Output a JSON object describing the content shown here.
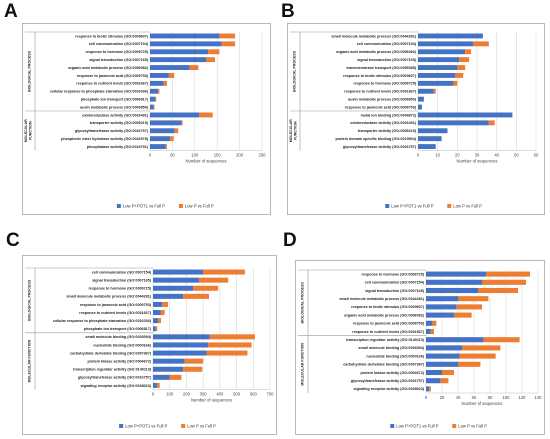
{
  "colors": {
    "combined": "#4472C4",
    "lowp": "#ED7D31",
    "grid": "#d9d9d9",
    "text": "#222222"
  },
  "chart_data": [
    {
      "panel": "A",
      "type": "bar",
      "orientation": "horizontal",
      "stacked": true,
      "xlabel": "Number of sequences",
      "xlim": [
        0,
        250
      ],
      "xticks": [
        0,
        50,
        100,
        150,
        200,
        250
      ],
      "series_names": [
        "Low P+POT1 vs Full P",
        "Low P vs Full P"
      ],
      "legend": "bottom",
      "grid": true,
      "groups": [
        {
          "label": "BIOLOGICAL PROCESS",
          "categories": [
            "response to biotic stimulus (GO:0009607)",
            "cell communication (GO:0007154)",
            "response to hormone (GO:0009725)",
            "signal transduction (GO:0007165)",
            "organic acid metabolic process (GO:0006082)",
            "response to jasmonic acid (GO:0009753)",
            "response to nutrient levels (GO:0031667)",
            "cellular response to phosphate starvation (GO:0016036)",
            "phosphate ion transport (GO:0006817)",
            "auxin metabolic process (GO:0009850)"
          ],
          "series": [
            {
              "name": "Low P+POT1 vs Full P",
              "values": [
                155,
                160,
                130,
                125,
                88,
                42,
                30,
                18,
                12,
                8
              ]
            },
            {
              "name": "Low P vs Full P",
              "values": [
                35,
                30,
                25,
                20,
                20,
                12,
                8,
                3,
                2,
                2
              ]
            }
          ]
        },
        {
          "label": "MOLECULAR FUNCTION",
          "categories": [
            "oxidoreductase activity (GO:0016491)",
            "transporter activity (GO:0005215)",
            "glycosyltransferase activity (GO:0016757)",
            "phosphoric ester hydrolase activity (GO:0042578)",
            "phosphatase activity (GO:0016791)"
          ],
          "series": [
            {
              "name": "Low P+POT1 vs Full P",
              "values": [
                110,
                70,
                55,
                45,
                35
              ]
            },
            {
              "name": "Low P vs Full P",
              "values": [
                30,
                3,
                8,
                8,
                3
              ]
            }
          ]
        }
      ]
    },
    {
      "panel": "B",
      "type": "bar",
      "orientation": "horizontal",
      "stacked": true,
      "xlabel": "Number of sequences",
      "xlim": [
        0,
        60
      ],
      "xticks": [
        0,
        10,
        20,
        30,
        40,
        50,
        60
      ],
      "series_names": [
        "Low P+POT1 vs Full P",
        "Low P vs Full P"
      ],
      "legend": "bottom",
      "grid": true,
      "groups": [
        {
          "label": "BIOLOGICAL PROCESS",
          "categories": [
            "small molecule metabolic process (GO:0044281)",
            "cell communication (GO:0007154)",
            "organic acid metabolic process (GO:0006082)",
            "signal transduction (GO:0007165)",
            "transmembrane transport (GO:0055085)",
            "response to biotic stimulus (GO:0009607)",
            "response to hormone (GO:0009725)",
            "response to nutrient levels (GO:0031667)",
            "auxin metabolic process (GO:0009850)",
            "response to jasmonic acid (GO:0009753)"
          ],
          "series": [
            {
              "name": "Low P+POT1 vs Full P",
              "values": [
                33,
                28,
                24,
                21,
                20,
                19,
                18,
                8,
                3,
                2
              ]
            },
            {
              "name": "Low P vs Full P",
              "values": [
                0,
                8,
                3,
                5,
                4,
                4,
                2,
                1,
                0,
                0
              ]
            }
          ]
        },
        {
          "label": "MOLECULAR FUNCTION",
          "categories": [
            "metal ion binding (GO:0046872)",
            "oxidoreductase activity (GO:0016491)",
            "transporter activity (GO:0005215)",
            "protein domain specific binding (GO:0019904)",
            "glycosyltransferase activity (GO:0016757)"
          ],
          "series": [
            {
              "name": "Low P+POT1 vs Full P",
              "values": [
                48,
                36,
                15,
                12,
                9
              ]
            },
            {
              "name": "Low P vs Full P",
              "values": [
                0,
                3,
                0,
                0,
                0
              ]
            }
          ]
        }
      ]
    },
    {
      "panel": "C",
      "type": "bar",
      "orientation": "horizontal",
      "stacked": true,
      "xlabel": "Number of sequences",
      "xlim": [
        0,
        700
      ],
      "xticks": [
        0,
        100,
        200,
        300,
        400,
        500,
        600,
        700
      ],
      "series_names": [
        "Low P+POT1 vs Full P",
        "Low P vs Full P"
      ],
      "legend": "bottom",
      "grid": true,
      "groups": [
        {
          "label": "BIOLOGICAL PROCESS",
          "categories": [
            "cell communication (GO:0007154)",
            "signal transduction (GO:0007165)",
            "response to hormone (GO:0009725)",
            "small molecule metabolic process (GO:0044281)",
            "response to jasmonic acid (GO:0009753)",
            "response to nutrient levels (GO:0031667)",
            "cellular response to phosphate starvation (GO:0016036)",
            "phosphate ion transport (GO:0006817)"
          ],
          "series": [
            {
              "name": "Low P+POT1 vs Full P",
              "values": [
                300,
                275,
                240,
                180,
                55,
                45,
                30,
                15
              ]
            },
            {
              "name": "Low P vs Full P",
              "values": [
                250,
                175,
                150,
                155,
                35,
                25,
                18,
                10
              ]
            }
          ]
        },
        {
          "label": "MOLECULAR FUNCTION",
          "categories": [
            "small molecule binding (GO:0036094)",
            "nucleotide binding (GO:0000166)",
            "carbohydrate derivative binding (GO:0097367)",
            "protein kinase activity (GO:0004672)",
            "transcription regulator activity (GO:0140110)",
            "glycosyltransferase activity (GO:0016757)",
            "signaling receptor activity (GO:0038023)"
          ],
          "series": [
            {
              "name": "Low P+POT1 vs Full P",
              "values": [
                340,
                330,
                320,
                190,
                180,
                100,
                25
              ]
            },
            {
              "name": "Low P vs Full P",
              "values": [
                270,
                260,
                245,
                110,
                115,
                70,
                15
              ]
            }
          ]
        }
      ]
    },
    {
      "panel": "D",
      "type": "bar",
      "orientation": "horizontal",
      "stacked": true,
      "xlabel": "Number of sequences",
      "xlim": [
        0,
        140
      ],
      "xticks": [
        0,
        20,
        40,
        60,
        80,
        100,
        120,
        140
      ],
      "series_names": [
        "Low P+POT1 vs Full P",
        "Low P vs Full P"
      ],
      "legend": "bottom",
      "grid": true,
      "groups": [
        {
          "label": "BIOLOGICAL PROCESS",
          "categories": [
            "response to hormone (GO:0009725)",
            "cell communication (GO:0007154)",
            "signal transduction (GO:0007165)",
            "small molecule metabolic process (GO:0044281)",
            "response to biotic stimulus (GO:0009607)",
            "organic acid metabolic process (GO:0006082)",
            "response to jasmonic acid (GO:0009753)",
            "response to nutrient levels (GO:0031667)"
          ],
          "series": [
            {
              "name": "Low P+POT1 vs Full P",
              "values": [
                75,
                70,
                65,
                40,
                38,
                35,
                8,
                6
              ]
            },
            {
              "name": "Low P vs Full P",
              "values": [
                55,
                55,
                50,
                38,
                32,
                22,
                5,
                4
              ]
            }
          ]
        },
        {
          "label": "MOLECULAR FUNCTION",
          "categories": [
            "transcription regulator activity (GO:0140110)",
            "small molecule binding (GO:0036094)",
            "nucleotide binding (GO:0000166)",
            "carbohydrate derivative binding (GO:0097367)",
            "protein kinase activity (GO:0004672)",
            "glycosyltransferase activity (GO:0016757)",
            "signaling receptor activity (GO:0038023)"
          ],
          "series": [
            {
              "name": "Low P+POT1 vs Full P",
              "values": [
                72,
                45,
                42,
                40,
                20,
                18,
                4
              ]
            },
            {
              "name": "Low P vs Full P",
              "values": [
                45,
                48,
                45,
                28,
                15,
                10,
                2
              ]
            }
          ]
        }
      ]
    }
  ]
}
